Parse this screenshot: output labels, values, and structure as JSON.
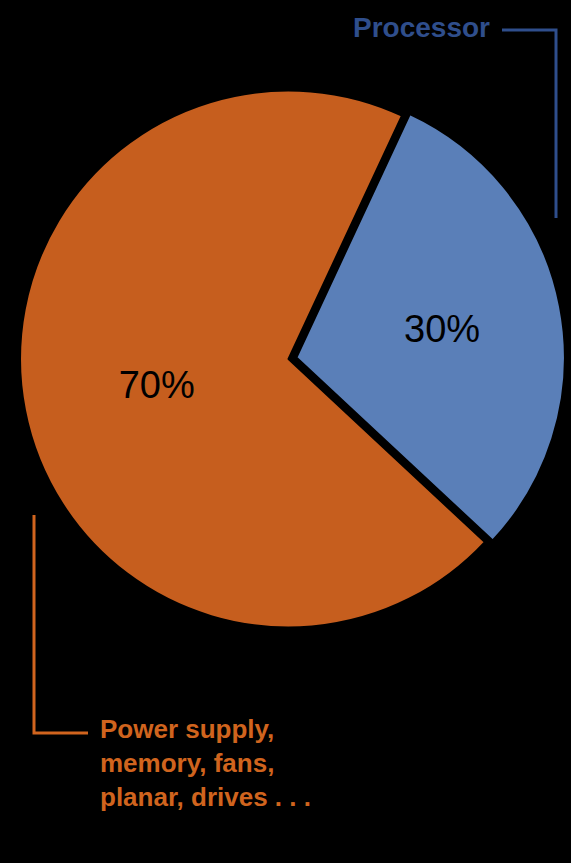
{
  "chart_data": {
    "type": "pie",
    "categories": [
      "Processor",
      "Power supply, memory, fans, planar, drives . . ."
    ],
    "values": [
      30,
      70
    ],
    "value_labels": [
      "30%",
      "70%"
    ],
    "colors": [
      "#5a7fb8",
      "#c65e1e"
    ],
    "data_labels": true
  }
}
